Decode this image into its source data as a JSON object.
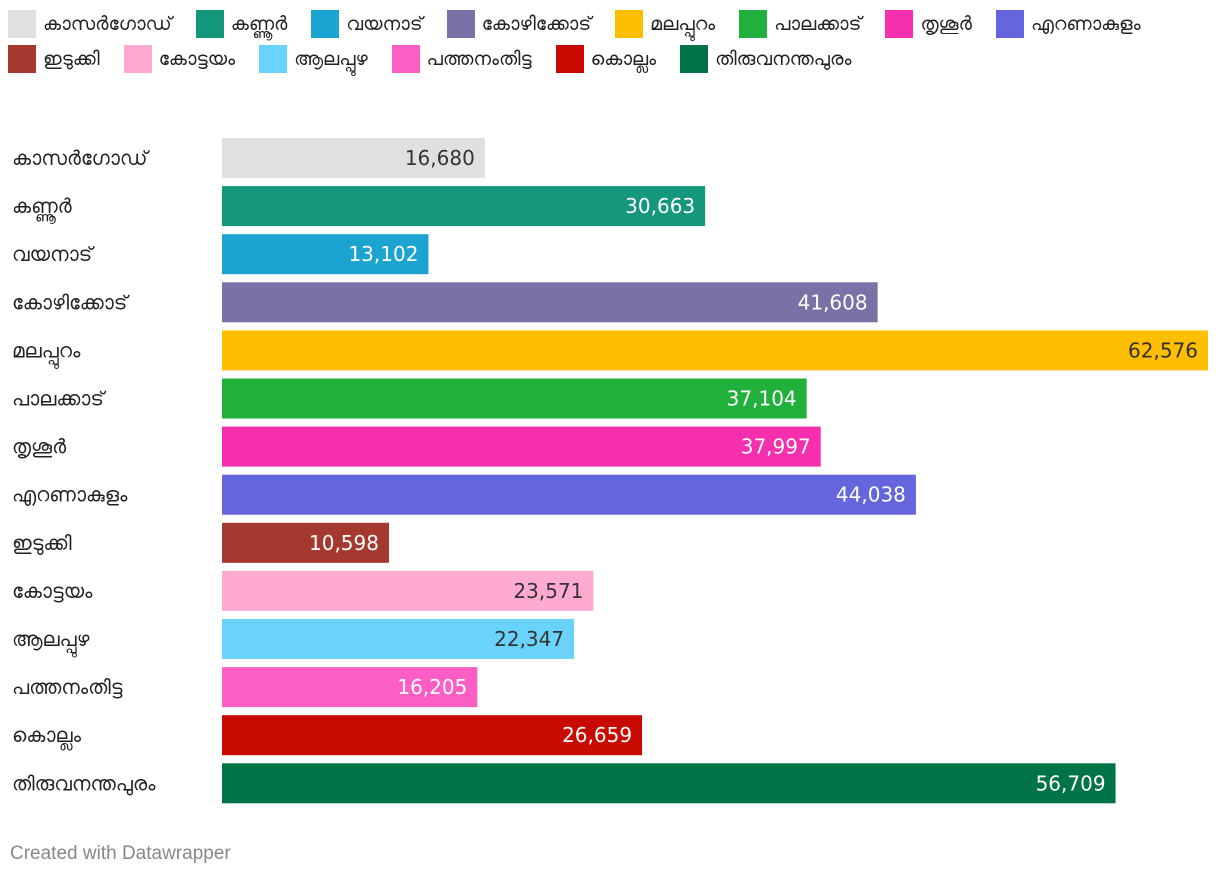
{
  "chart_data": {
    "type": "bar",
    "orientation": "horizontal",
    "categories": [
      "കാസർഗോഡ്",
      "കണ്ണൂർ",
      "വയനാട്",
      "കോഴിക്കോട്",
      "മലപ്പുറം",
      "പാലക്കാട്",
      "തൃശൂർ",
      "എറണാകുളം",
      "ഇടുക്കി",
      "കോട്ടയം",
      "ആലപ്പുഴ",
      "പത്തനംതിട്ട",
      "കൊല്ലം",
      "തിരുവനന്തപുരം"
    ],
    "values": [
      16680,
      30663,
      13102,
      41608,
      62576,
      37104,
      37997,
      44038,
      10598,
      23571,
      22347,
      16205,
      26659,
      56709
    ],
    "value_labels": [
      "16,680",
      "30,663",
      "13,102",
      "41,608",
      "62,576",
      "37,104",
      "37,997",
      "44,038",
      "10,598",
      "23,571",
      "22,347",
      "16,205",
      "26,659",
      "56,709"
    ],
    "colors": [
      "#e0e0e0",
      "#15977b",
      "#1ba4d0",
      "#7b71a6",
      "#ffbe00",
      "#21b03c",
      "#f52fae",
      "#6566dd",
      "#a5392f",
      "#ffabcf",
      "#6ad3fb",
      "#fd5ec5",
      "#c80a00",
      "#007446"
    ],
    "label_text_colors": [
      "#333333",
      "#ffffff",
      "#ffffff",
      "#ffffff",
      "#333333",
      "#ffffff",
      "#ffffff",
      "#ffffff",
      "#ffffff",
      "#333333",
      "#333333",
      "#ffffff",
      "#ffffff",
      "#ffffff"
    ],
    "legend": {
      "position": "top",
      "entries": [
        "കാസർഗോഡ്",
        "കണ്ണൂർ",
        "വയനാട്",
        "കോഴിക്കോട്",
        "മലപ്പുറം",
        "പാലക്കാട്",
        "തൃശൂർ",
        "എറണാകുളം",
        "ഇടുക്കി",
        "കോട്ടയം",
        "ആലപ്പുഴ",
        "പത്തനംതിട്ട",
        "കൊല്ലം",
        "തിരുവനന്തപുരം"
      ]
    },
    "xlim": [
      0,
      62576
    ],
    "grid": false
  },
  "footer": {
    "credit": "Created with Datawrapper"
  }
}
